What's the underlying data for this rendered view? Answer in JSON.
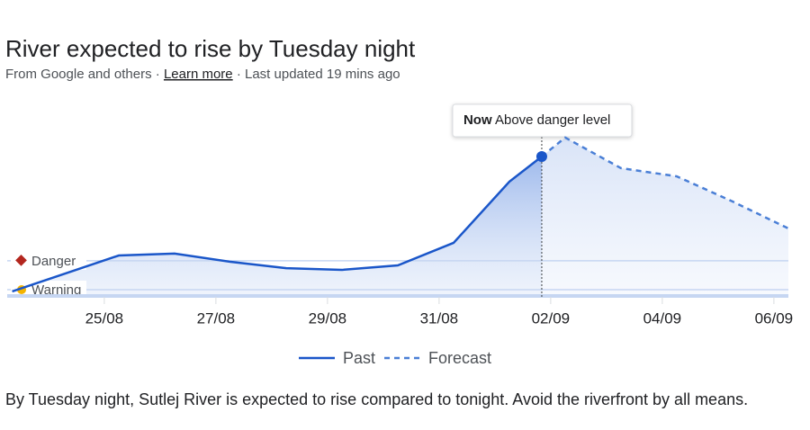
{
  "chart_data": {
    "type": "line",
    "title": "River expected to rise by Tuesday night",
    "source": "From Google and others",
    "separator": "·",
    "link": "Learn more",
    "updated": "Last updated 19 mins ago",
    "xlim": [
      -1.74,
      12.26
    ],
    "xticks": [
      {
        "value": 0,
        "label": "25/08"
      },
      {
        "value": 2,
        "label": "27/08"
      },
      {
        "value": 4,
        "label": "29/08"
      },
      {
        "value": 6,
        "label": "31/08"
      },
      {
        "value": 8,
        "label": "02/09"
      },
      {
        "value": 10,
        "label": "04/09"
      },
      {
        "value": 12,
        "label": "06/09"
      }
    ],
    "ylim": [
      0,
      100
    ],
    "thresholds": [
      {
        "name": "Danger",
        "value": 21.1,
        "color": "#b3261e"
      },
      {
        "name": "Warning",
        "value": 4.2,
        "color": "#f4b400"
      }
    ],
    "series": [
      {
        "name": "Past",
        "color": "#1a56c9",
        "style": "solid",
        "x": [
          -1.65,
          0.26,
          1.26,
          2.26,
          3.26,
          4.26,
          5.26,
          6.26,
          7.26,
          7.84
        ],
        "values": [
          3.2,
          24.2,
          25.3,
          20.5,
          16.8,
          15.8,
          18.4,
          31.6,
          67.4,
          82.1
        ]
      },
      {
        "name": "Forecast",
        "color": "#4a7fd6",
        "style": "dashed",
        "x": [
          7.84,
          8.26,
          9.26,
          10.26,
          11.26,
          12.26
        ],
        "values": [
          82.1,
          93.2,
          75.3,
          70.5,
          55.8,
          40
        ]
      }
    ],
    "annotation": {
      "label": "Now",
      "text": "Above danger level",
      "x": 7.84
    },
    "description": "By Tuesday night, Sutlej River is expected to rise compared to tonight. Avoid the riverfront by all means."
  }
}
